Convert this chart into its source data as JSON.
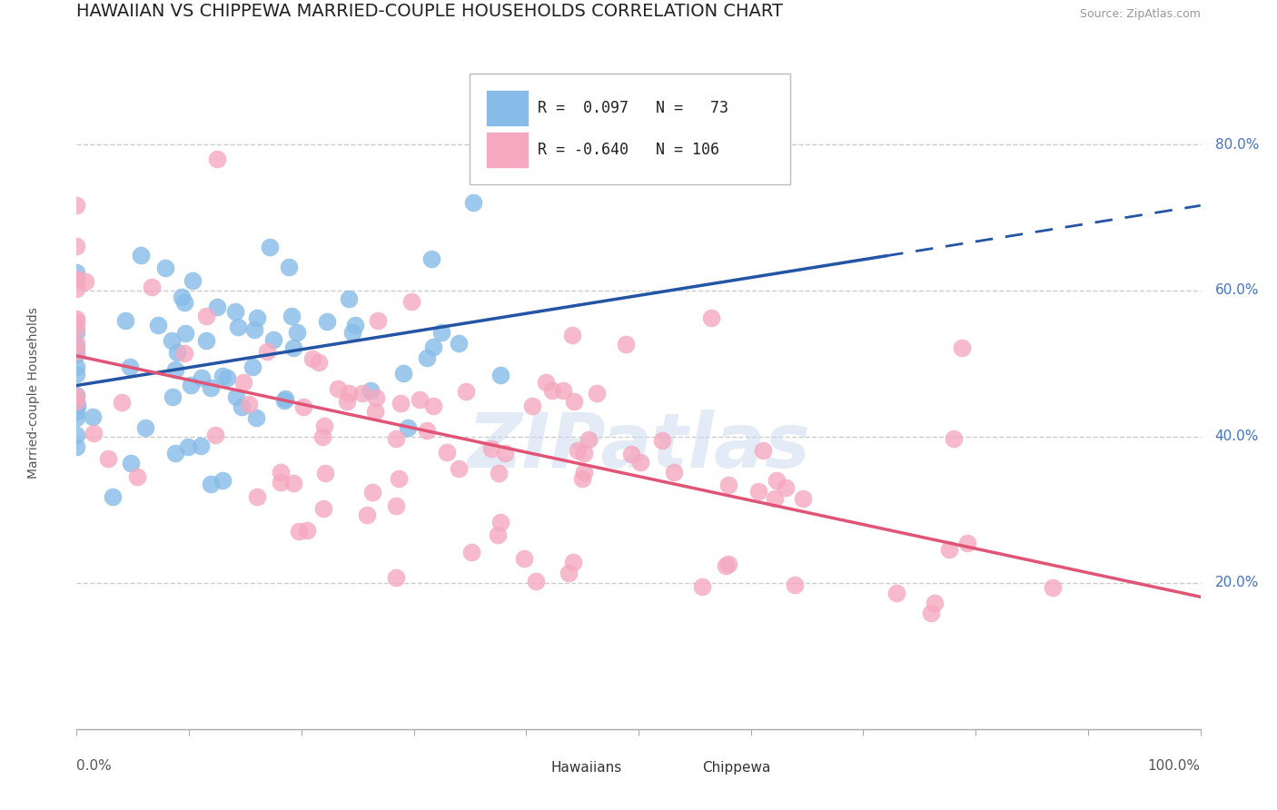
{
  "title": "HAWAIIAN VS CHIPPEWA MARRIED-COUPLE HOUSEHOLDS CORRELATION CHART",
  "source": "Source: ZipAtlas.com",
  "ylabel": "Married-couple Households",
  "xlim": [
    0.0,
    1.0
  ],
  "ylim": [
    0.0,
    0.92
  ],
  "ytick_labels": [
    "20.0%",
    "40.0%",
    "60.0%",
    "80.0%"
  ],
  "ytick_values": [
    0.2,
    0.4,
    0.6,
    0.8
  ],
  "watermark": "ZIPatlas",
  "hawaiian_color": "#87bce8",
  "chippewa_color": "#f5a8c0",
  "hawaiian_line_color": "#2455a4",
  "chippewa_line_color": "#e05575",
  "background_color": "#ffffff",
  "grid_color": "#cccccc",
  "title_fontsize": 14,
  "axis_label_fontsize": 10,
  "tick_label_fontsize": 11,
  "legend_fontsize": 12,
  "ytick_color": "#4472c4",
  "xtick_color": "#555555"
}
